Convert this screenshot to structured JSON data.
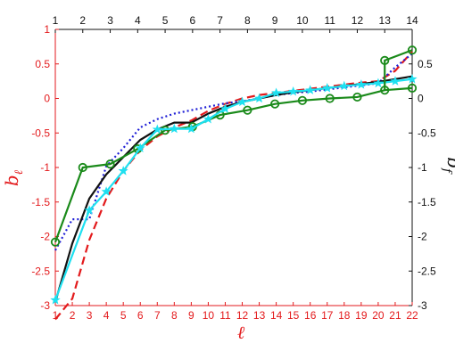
{
  "chart_data": {
    "type": "line",
    "bottom_axis": {
      "label": "ℓ",
      "ticks": [
        1,
        2,
        3,
        4,
        5,
        6,
        7,
        8,
        9,
        10,
        11,
        12,
        13,
        14,
        15,
        16,
        17,
        18,
        19,
        20,
        21,
        22
      ],
      "range": [
        1,
        22
      ],
      "color": "#e31a1c"
    },
    "top_axis": {
      "ticks": [
        1,
        2,
        3,
        4,
        5,
        6,
        7,
        8,
        9,
        10,
        11,
        12,
        13,
        14
      ],
      "range": [
        1,
        14
      ],
      "color": "#111111"
    },
    "left_axis": {
      "label": "b_ℓ",
      "ticks": [
        1,
        0.5,
        0,
        -0.5,
        -1,
        -1.5,
        -2,
        -2.5,
        -3
      ],
      "range": [
        -3,
        1
      ],
      "color": "#e31a1c"
    },
    "right_axis": {
      "label": "b_f",
      "ticks": [
        0.5,
        0,
        -0.5,
        -1,
        -1.5,
        -2,
        -2.5,
        -3
      ],
      "range": [
        -3,
        1
      ],
      "color": "#111111"
    },
    "series": [
      {
        "axis": "bottom-left",
        "color": "#e31a1c",
        "style": "dashed",
        "x": [
          1,
          2,
          3,
          4,
          5,
          6,
          7,
          8,
          9,
          10,
          11,
          12,
          13,
          14,
          15,
          16,
          17,
          18,
          19,
          20,
          21,
          22
        ],
        "y": [
          -3.2,
          -2.9,
          -2.05,
          -1.45,
          -1.05,
          -0.75,
          -0.55,
          -0.42,
          -0.32,
          -0.18,
          -0.08,
          0.0,
          0.05,
          0.08,
          0.11,
          0.14,
          0.17,
          0.2,
          0.23,
          0.25,
          0.4,
          0.68
        ]
      },
      {
        "axis": "bottom-left",
        "color": "#1f1fd6",
        "style": "dotted",
        "x": [
          1,
          2,
          3,
          4,
          5,
          6,
          7,
          8,
          9,
          10,
          11,
          12,
          13,
          14,
          15,
          16,
          17,
          18,
          19,
          20,
          21,
          22
        ],
        "y": [
          -2.2,
          -1.75,
          -1.75,
          -0.98,
          -0.72,
          -0.42,
          -0.3,
          -0.22,
          -0.17,
          -0.12,
          -0.07,
          -0.04,
          0.0,
          0.05,
          0.08,
          0.1,
          0.13,
          0.16,
          0.19,
          0.22,
          0.45,
          0.65
        ]
      },
      {
        "axis": "bottom-left",
        "color": "#111111",
        "style": "solid",
        "x": [
          1,
          2,
          3,
          4,
          5,
          6,
          7,
          8,
          9,
          10,
          11,
          12,
          13,
          14,
          15,
          16,
          17,
          18,
          19,
          20,
          21,
          22
        ],
        "y": [
          -2.95,
          -2.1,
          -1.45,
          -1.1,
          -0.85,
          -0.6,
          -0.45,
          -0.35,
          -0.35,
          -0.22,
          -0.12,
          -0.05,
          0.0,
          0.05,
          0.09,
          0.12,
          0.15,
          0.18,
          0.21,
          0.24,
          0.28,
          0.32
        ]
      },
      {
        "axis": "top-right",
        "color": "#1a8a1a",
        "style": "solid",
        "marker": "circle",
        "x": [
          1,
          2,
          3,
          4,
          5,
          6,
          7,
          8,
          9,
          10,
          11,
          12,
          13,
          14
        ],
        "y": [
          -2.08,
          -1.0,
          -0.95,
          -0.73,
          -0.46,
          -0.41,
          -0.24,
          -0.17,
          -0.08,
          -0.03,
          0.0,
          0.02,
          0.12,
          0.15
        ]
      },
      {
        "axis": "bottom-left",
        "color": "#1ee0f0",
        "style": "solid",
        "marker": "star",
        "x": [
          1,
          3,
          4,
          5,
          6,
          7,
          8,
          9,
          10,
          11,
          12,
          13,
          14,
          15,
          16,
          17,
          18,
          19,
          20,
          21,
          22
        ],
        "y": [
          -2.92,
          -1.62,
          -1.35,
          -1.05,
          -0.72,
          -0.45,
          -0.44,
          -0.44,
          -0.3,
          -0.15,
          -0.05,
          0.0,
          0.08,
          0.1,
          0.12,
          0.15,
          0.18,
          0.2,
          0.22,
          0.25,
          0.28
        ]
      }
    ],
    "right_series_extension": {
      "axis": "top-right",
      "color": "#1a8a1a",
      "x": [
        13,
        14
      ],
      "y": [
        0.55,
        0.7
      ]
    }
  }
}
